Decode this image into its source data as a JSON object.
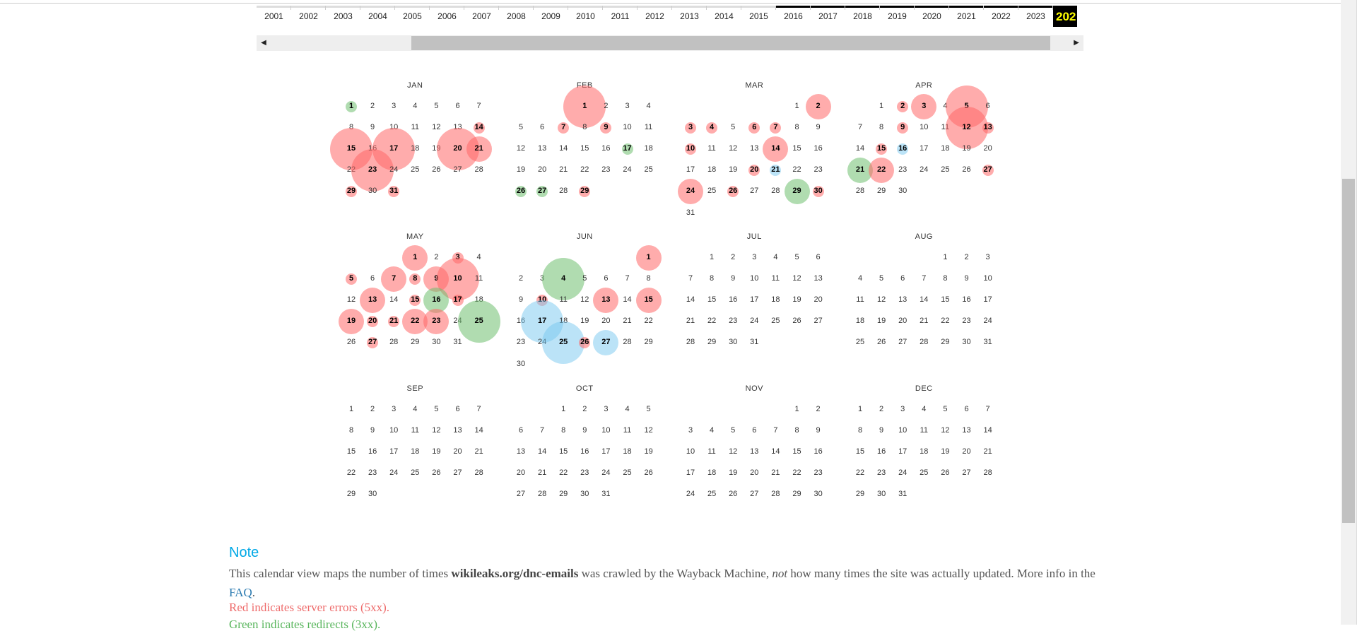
{
  "years": [
    "2001",
    "2002",
    "2003",
    "2004",
    "2005",
    "2006",
    "2007",
    "2008",
    "2009",
    "2010",
    "2011",
    "2012",
    "2013",
    "2014",
    "2015",
    "2016",
    "2017",
    "2018",
    "2019",
    "2020",
    "2021",
    "2022",
    "2023",
    "202"
  ],
  "selected_year": "202",
  "months": [
    {
      "name": "JAN",
      "first": 0,
      "days": 31,
      "hits": {
        "1": [
          "green",
          1
        ],
        "14": [
          "red",
          1
        ],
        "15": [
          "red",
          3
        ],
        "17": [
          "red",
          3
        ],
        "20": [
          "red",
          3
        ],
        "21": [
          "red",
          2
        ],
        "23": [
          "red",
          3
        ],
        "29": [
          "red",
          1
        ],
        "31": [
          "red",
          1
        ]
      }
    },
    {
      "name": "FEB",
      "first": 3,
      "days": 29,
      "hits": {
        "1": [
          "red",
          3
        ],
        "7": [
          "red",
          1
        ],
        "9": [
          "red",
          1
        ],
        "17": [
          "green",
          1
        ],
        "26": [
          "green",
          1
        ],
        "27": [
          "green",
          1
        ],
        "29": [
          "red",
          1
        ]
      }
    },
    {
      "name": "MAR",
      "first": 5,
      "days": 31,
      "hits": {
        "2": [
          "red",
          2
        ],
        "3": [
          "red",
          1
        ],
        "4": [
          "red",
          1
        ],
        "6": [
          "red",
          1
        ],
        "7": [
          "red",
          1
        ],
        "10": [
          "red",
          1
        ],
        "14": [
          "red",
          2
        ],
        "20": [
          "red",
          1
        ],
        "21": [
          "blue",
          1
        ],
        "24": [
          "red",
          2
        ],
        "26": [
          "red",
          1
        ],
        "29": [
          "green",
          2
        ],
        "30": [
          "red",
          1
        ]
      }
    },
    {
      "name": "APR",
      "first": 1,
      "days": 30,
      "hits": {
        "2": [
          "red",
          1
        ],
        "3": [
          "red",
          2
        ],
        "5": [
          "red",
          3
        ],
        "9": [
          "red",
          1
        ],
        "12": [
          "red",
          3
        ],
        "13": [
          "red",
          1
        ],
        "15": [
          "red",
          1
        ],
        "16": [
          "blue",
          1
        ],
        "21": [
          "green",
          2
        ],
        "22": [
          "red",
          2
        ],
        "27": [
          "red",
          1
        ]
      }
    },
    {
      "name": "MAY",
      "first": 3,
      "days": 31,
      "hits": {
        "1": [
          "red",
          2
        ],
        "3": [
          "red",
          1
        ],
        "5": [
          "red",
          1
        ],
        "7": [
          "red",
          2
        ],
        "8": [
          "red",
          1
        ],
        "9": [
          "red",
          2
        ],
        "10": [
          "red",
          3
        ],
        "13": [
          "red",
          2
        ],
        "15": [
          "red",
          1
        ],
        "16": [
          "green",
          2
        ],
        "17": [
          "red",
          1
        ],
        "19": [
          "red",
          2
        ],
        "20": [
          "red",
          1
        ],
        "21": [
          "red",
          1
        ],
        "22": [
          "red",
          2
        ],
        "23": [
          "red",
          2
        ],
        "25": [
          "green",
          3
        ],
        "27": [
          "red",
          1
        ]
      }
    },
    {
      "name": "JUN",
      "first": 6,
      "days": 30,
      "hits": {
        "1": [
          "red",
          2
        ],
        "4": [
          "green",
          3
        ],
        "10": [
          "red",
          1
        ],
        "13": [
          "red",
          2
        ],
        "15": [
          "red",
          2
        ],
        "17": [
          "blue",
          3
        ],
        "25": [
          "blue",
          3
        ],
        "26": [
          "red",
          1
        ],
        "27": [
          "blue",
          2
        ]
      }
    },
    {
      "name": "JUL",
      "first": 1,
      "days": 31,
      "hits": {}
    },
    {
      "name": "AUG",
      "first": 4,
      "days": 31,
      "hits": {}
    },
    {
      "name": "SEP",
      "first": 0,
      "days": 30,
      "hits": {}
    },
    {
      "name": "OCT",
      "first": 2,
      "days": 31,
      "hits": {}
    },
    {
      "name": "NOV",
      "first": 5,
      "days": 30,
      "hits": {}
    },
    {
      "name": "DEC",
      "first": 0,
      "days": 31,
      "hits": {}
    }
  ],
  "note": {
    "title": "Note",
    "text1": "This calendar view maps the number of times ",
    "site": "wikileaks.org/dnc-emails",
    "text2": " was crawled by the Wayback Machine, ",
    "not": "not",
    "text3": " how many times the site was actually updated. More info in the ",
    "faq": "FAQ",
    "text4": ".",
    "red": "Red indicates server errors (5xx).",
    "green": "Green indicates redirects (3xx)."
  },
  "colors": {
    "red": "#ff6868",
    "green": "#6fbf6f",
    "blue": "#78c8f0",
    "accent": "#00a8e6",
    "selected_year_text": "#ffff00"
  }
}
